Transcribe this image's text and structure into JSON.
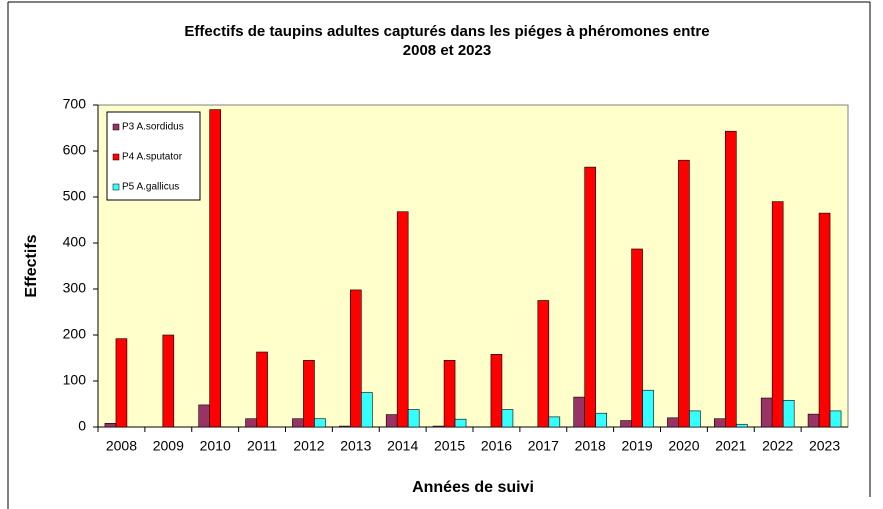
{
  "chart_data": {
    "type": "bar",
    "title": [
      "Effectifs de taupins adultes capturés dans les piéges à phéromones entre",
      "2008 et 2023"
    ],
    "x_label": "Années de suivi",
    "y_label": "Effectifs",
    "categories": [
      "2008",
      "2009",
      "2010",
      "2011",
      "2012",
      "2013",
      "2014",
      "2015",
      "2016",
      "2017",
      "2018",
      "2019",
      "2020",
      "2021",
      "2022",
      "2023"
    ],
    "series": [
      {
        "name": "P3 A.sordidus",
        "color": "#993366",
        "values": [
          8,
          0,
          48,
          18,
          18,
          2,
          27,
          2,
          0,
          0,
          65,
          14,
          20,
          18,
          63,
          28
        ]
      },
      {
        "name": "P4 A.sputator",
        "color": "#ff0000",
        "values": [
          192,
          200,
          690,
          163,
          145,
          298,
          468,
          145,
          158,
          275,
          565,
          387,
          580,
          643,
          490,
          465
        ]
      },
      {
        "name": "P5 A.gallicus",
        "color": "#33ffff",
        "values": [
          0,
          0,
          0,
          0,
          18,
          75,
          38,
          17,
          38,
          22,
          30,
          80,
          35,
          6,
          58,
          35
        ]
      }
    ],
    "ylim": [
      0,
      700
    ],
    "yticks": [
      0,
      100,
      200,
      300,
      400,
      500,
      600,
      700
    ],
    "grid": false,
    "legend": "upper left",
    "plot_background": "#ffffcc"
  }
}
